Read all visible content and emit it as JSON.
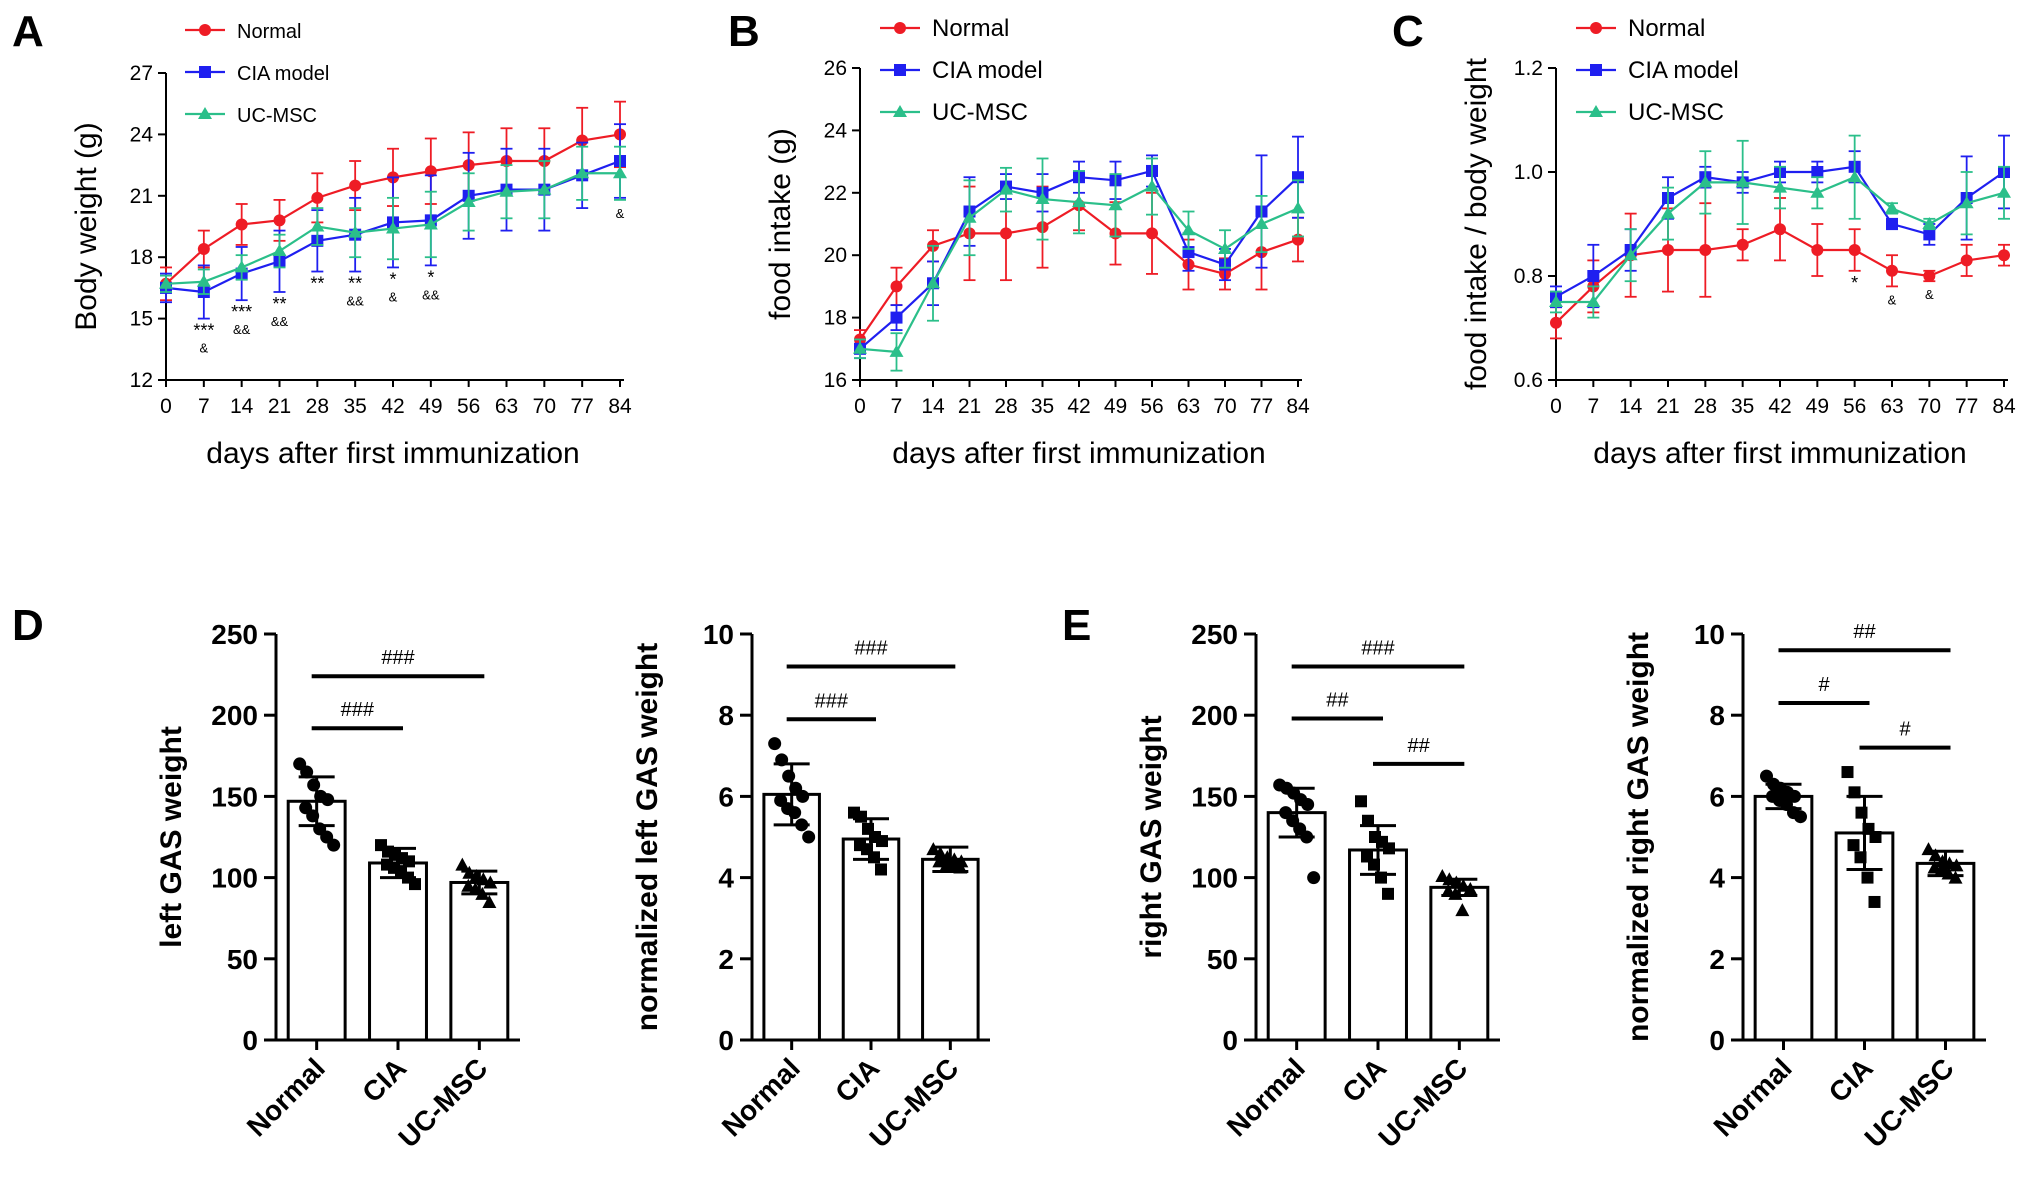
{
  "panel_letters": {
    "A": "A",
    "B": "B",
    "C": "C",
    "D": "D",
    "E": "E"
  },
  "colors": {
    "normal": "#ee1c25",
    "cia": "#1f1ff0",
    "ucmsc": "#2bbf8a",
    "axis": "#000000",
    "bar": "#000000"
  },
  "chart_data": [
    {
      "id": "A",
      "type": "line",
      "ylabel": "Body weight (g)",
      "xlabel": "days after first immunization",
      "x": [
        0,
        7,
        14,
        21,
        28,
        35,
        42,
        49,
        56,
        63,
        70,
        77,
        84
      ],
      "xlim": [
        0,
        84
      ],
      "ylim": [
        12,
        27
      ],
      "yticks": [
        12,
        15,
        18,
        21,
        24,
        27
      ],
      "ytick_decimals": 0,
      "legend": [
        "Normal",
        "CIA model",
        "UC-MSC"
      ],
      "legend_position": "top-left",
      "series": [
        {
          "name": "Normal",
          "marker": "circle",
          "values": [
            16.7,
            18.4,
            19.6,
            19.8,
            20.9,
            21.5,
            21.9,
            22.2,
            22.5,
            22.7,
            22.7,
            23.7,
            24.0
          ],
          "err": [
            0.8,
            0.9,
            1.0,
            1.0,
            1.2,
            1.2,
            1.4,
            1.6,
            1.6,
            1.6,
            1.6,
            1.6,
            1.6
          ]
        },
        {
          "name": "CIA model",
          "marker": "square",
          "values": [
            16.5,
            16.3,
            17.2,
            17.8,
            18.8,
            19.1,
            19.7,
            19.8,
            21.0,
            21.3,
            21.3,
            22.0,
            22.7
          ],
          "err": [
            0.7,
            1.3,
            1.3,
            1.5,
            1.5,
            1.8,
            2.2,
            2.2,
            2.1,
            2.0,
            2.0,
            1.6,
            1.8
          ]
        },
        {
          "name": "UC-MSC",
          "marker": "triangle",
          "values": [
            16.7,
            16.8,
            17.5,
            18.3,
            19.5,
            19.2,
            19.4,
            19.6,
            20.7,
            21.2,
            21.3,
            22.1,
            22.1
          ],
          "err": [
            0.4,
            0.6,
            0.6,
            0.8,
            0.9,
            1.2,
            1.5,
            1.6,
            1.4,
            1.3,
            1.4,
            1.3,
            1.3
          ]
        }
      ],
      "annotations": [
        {
          "x": 7,
          "star": "***",
          "amp": "&"
        },
        {
          "x": 14,
          "star": "***",
          "amp": "&&"
        },
        {
          "x": 21,
          "star": "**",
          "amp": "&&"
        },
        {
          "x": 28,
          "star": "**",
          "amp": ""
        },
        {
          "x": 35,
          "star": "**",
          "amp": "&&"
        },
        {
          "x": 42,
          "star": "*",
          "amp": "&"
        },
        {
          "x": 49,
          "star": "*",
          "amp": "&&"
        },
        {
          "x": 84,
          "star": "",
          "amp": "&"
        }
      ]
    },
    {
      "id": "B",
      "type": "line",
      "ylabel": "food intake (g)",
      "xlabel": "days after first immunization",
      "x": [
        0,
        7,
        14,
        21,
        28,
        35,
        42,
        49,
        56,
        63,
        70,
        77,
        84
      ],
      "xlim": [
        0,
        84
      ],
      "ylim": [
        16,
        26
      ],
      "yticks": [
        16,
        18,
        20,
        22,
        24,
        26
      ],
      "ytick_decimals": 0,
      "legend": [
        "Normal",
        "CIA model",
        "UC-MSC"
      ],
      "legend_position": "top-left",
      "series": [
        {
          "name": "Normal",
          "marker": "circle",
          "values": [
            17.3,
            19.0,
            20.3,
            20.7,
            20.7,
            20.9,
            21.6,
            20.7,
            20.7,
            19.7,
            19.4,
            20.1,
            20.5
          ],
          "err": [
            0.3,
            0.6,
            0.5,
            1.5,
            1.5,
            1.3,
            0.8,
            1.0,
            1.3,
            0.8,
            0.5,
            1.2,
            0.7
          ]
        },
        {
          "name": "CIA model",
          "marker": "square",
          "values": [
            17.0,
            18.0,
            19.1,
            21.4,
            22.2,
            22.0,
            22.5,
            22.4,
            22.7,
            20.1,
            19.7,
            21.4,
            22.5
          ],
          "err": [
            0.3,
            0.4,
            0.7,
            1.1,
            0.4,
            0.6,
            0.5,
            0.6,
            0.5,
            0.6,
            0.5,
            1.8,
            1.3
          ]
        },
        {
          "name": "UC-MSC",
          "marker": "triangle",
          "values": [
            17.0,
            16.9,
            19.1,
            21.2,
            22.1,
            21.8,
            21.7,
            21.6,
            22.2,
            20.8,
            20.2,
            21.0,
            21.5
          ],
          "err": [
            0.3,
            0.6,
            1.2,
            1.2,
            0.7,
            1.3,
            1.0,
            1.0,
            0.9,
            0.6,
            0.6,
            0.9,
            0.9
          ]
        }
      ],
      "annotations": []
    },
    {
      "id": "C",
      "type": "line",
      "ylabel": "food intake / body weight",
      "xlabel": "days after first immunization",
      "x": [
        0,
        7,
        14,
        21,
        28,
        35,
        42,
        49,
        56,
        63,
        70,
        77,
        84
      ],
      "xlim": [
        0,
        84
      ],
      "ylim": [
        0.6,
        1.2
      ],
      "yticks": [
        0.6,
        0.8,
        1.0,
        1.2
      ],
      "ytick_decimals": 1,
      "legend": [
        "Normal",
        "CIA model",
        "UC-MSC"
      ],
      "legend_position": "top-left",
      "series": [
        {
          "name": "Normal",
          "marker": "circle",
          "values": [
            0.71,
            0.78,
            0.84,
            0.85,
            0.85,
            0.86,
            0.89,
            0.85,
            0.85,
            0.81,
            0.8,
            0.83,
            0.84
          ],
          "err": [
            0.03,
            0.05,
            0.08,
            0.08,
            0.09,
            0.03,
            0.06,
            0.05,
            0.04,
            0.03,
            0.01,
            0.03,
            0.02
          ]
        },
        {
          "name": "CIA model",
          "marker": "square",
          "values": [
            0.76,
            0.8,
            0.85,
            0.95,
            0.99,
            0.98,
            1.0,
            1.0,
            1.01,
            0.9,
            0.88,
            0.95,
            1.0
          ],
          "err": [
            0.02,
            0.06,
            0.04,
            0.04,
            0.02,
            0.02,
            0.02,
            0.02,
            0.03,
            0.01,
            0.02,
            0.08,
            0.07
          ]
        },
        {
          "name": "UC-MSC",
          "marker": "triangle",
          "values": [
            0.75,
            0.75,
            0.84,
            0.92,
            0.98,
            0.98,
            0.97,
            0.96,
            0.99,
            0.93,
            0.9,
            0.94,
            0.96
          ],
          "err": [
            0.02,
            0.03,
            0.05,
            0.05,
            0.06,
            0.08,
            0.04,
            0.03,
            0.08,
            0.01,
            0.01,
            0.06,
            0.05
          ]
        }
      ],
      "annotations": [
        {
          "x": 56,
          "star": "*",
          "amp": ""
        },
        {
          "x": 63,
          "star": "",
          "amp": "&"
        },
        {
          "x": 70,
          "star": "",
          "amp": "&"
        }
      ]
    },
    {
      "id": "D1",
      "type": "bar",
      "ylabel": "left GAS weight",
      "categories": [
        "Normal",
        "CIA",
        "UC-MSC"
      ],
      "ylim": [
        0,
        250
      ],
      "yticks": [
        0,
        50,
        100,
        150,
        200,
        250
      ],
      "values": [
        147,
        109,
        97
      ],
      "err": [
        15,
        9,
        7
      ],
      "points": [
        [
          170,
          165,
          157,
          150,
          148,
          143,
          138,
          130,
          125,
          120
        ],
        [
          120,
          116,
          114,
          112,
          110,
          108,
          106,
          104,
          100,
          96
        ],
        [
          108,
          103,
          101,
          99,
          97,
          95,
          93,
          90,
          85
        ]
      ],
      "brackets": [
        {
          "from": 0,
          "to": 1,
          "y": 192,
          "label": "###"
        },
        {
          "from": 0,
          "to": 2,
          "y": 224,
          "label": "###"
        }
      ]
    },
    {
      "id": "D2",
      "type": "bar",
      "ylabel": "normalized left GAS weight",
      "categories": [
        "Normal",
        "CIA",
        "UC-MSC"
      ],
      "ylim": [
        0,
        10
      ],
      "yticks": [
        0,
        2,
        4,
        6,
        8,
        10
      ],
      "values": [
        6.05,
        4.95,
        4.45
      ],
      "err": [
        0.75,
        0.5,
        0.3
      ],
      "points": [
        [
          7.3,
          6.9,
          6.5,
          6.2,
          6.0,
          5.9,
          5.7,
          5.6,
          5.3,
          5.0
        ],
        [
          5.6,
          5.5,
          5.2,
          5.0,
          4.9,
          4.8,
          4.7,
          4.5,
          4.2
        ],
        [
          4.7,
          4.6,
          4.5,
          4.45,
          4.4,
          4.4,
          4.3,
          4.3,
          4.25
        ]
      ],
      "brackets": [
        {
          "from": 0,
          "to": 1,
          "y": 7.9,
          "label": "###"
        },
        {
          "from": 0,
          "to": 2,
          "y": 9.2,
          "label": "###"
        }
      ]
    },
    {
      "id": "E1",
      "type": "bar",
      "ylabel": "right GAS weight",
      "categories": [
        "Normal",
        "CIA",
        "UC-MSC"
      ],
      "ylim": [
        0,
        250
      ],
      "yticks": [
        0,
        50,
        100,
        150,
        200,
        250
      ],
      "values": [
        140,
        117,
        94
      ],
      "err": [
        15,
        15,
        5
      ],
      "points": [
        [
          157,
          155,
          152,
          148,
          145,
          140,
          135,
          130,
          125,
          100
        ],
        [
          147,
          135,
          125,
          122,
          118,
          113,
          108,
          100,
          90
        ],
        [
          101,
          99,
          97,
          95,
          93,
          92,
          90,
          80
        ]
      ],
      "brackets": [
        {
          "from": 0,
          "to": 1,
          "y": 198,
          "label": "##"
        },
        {
          "from": 1,
          "to": 2,
          "y": 170,
          "label": "##"
        },
        {
          "from": 0,
          "to": 2,
          "y": 230,
          "label": "###"
        }
      ]
    },
    {
      "id": "E2",
      "type": "bar",
      "ylabel": "normalized right GAS weight",
      "categories": [
        "Normal",
        "CIA",
        "UC-MSC"
      ],
      "ylim": [
        0,
        10
      ],
      "yticks": [
        0,
        2,
        4,
        6,
        8,
        10
      ],
      "values": [
        6.0,
        5.1,
        4.35
      ],
      "err": [
        0.3,
        0.9,
        0.3
      ],
      "points": [
        [
          6.5,
          6.3,
          6.2,
          6.1,
          6.0,
          6.0,
          5.9,
          5.8,
          5.6,
          5.5
        ],
        [
          6.6,
          6.1,
          5.6,
          5.2,
          5.0,
          4.8,
          4.5,
          4.0,
          3.4
        ],
        [
          4.7,
          4.55,
          4.4,
          4.35,
          4.3,
          4.25,
          4.2,
          4.1,
          4.0
        ]
      ],
      "brackets": [
        {
          "from": 0,
          "to": 1,
          "y": 8.3,
          "label": "#"
        },
        {
          "from": 1,
          "to": 2,
          "y": 7.2,
          "label": "#"
        },
        {
          "from": 0,
          "to": 2,
          "y": 9.6,
          "label": "##"
        }
      ]
    }
  ]
}
